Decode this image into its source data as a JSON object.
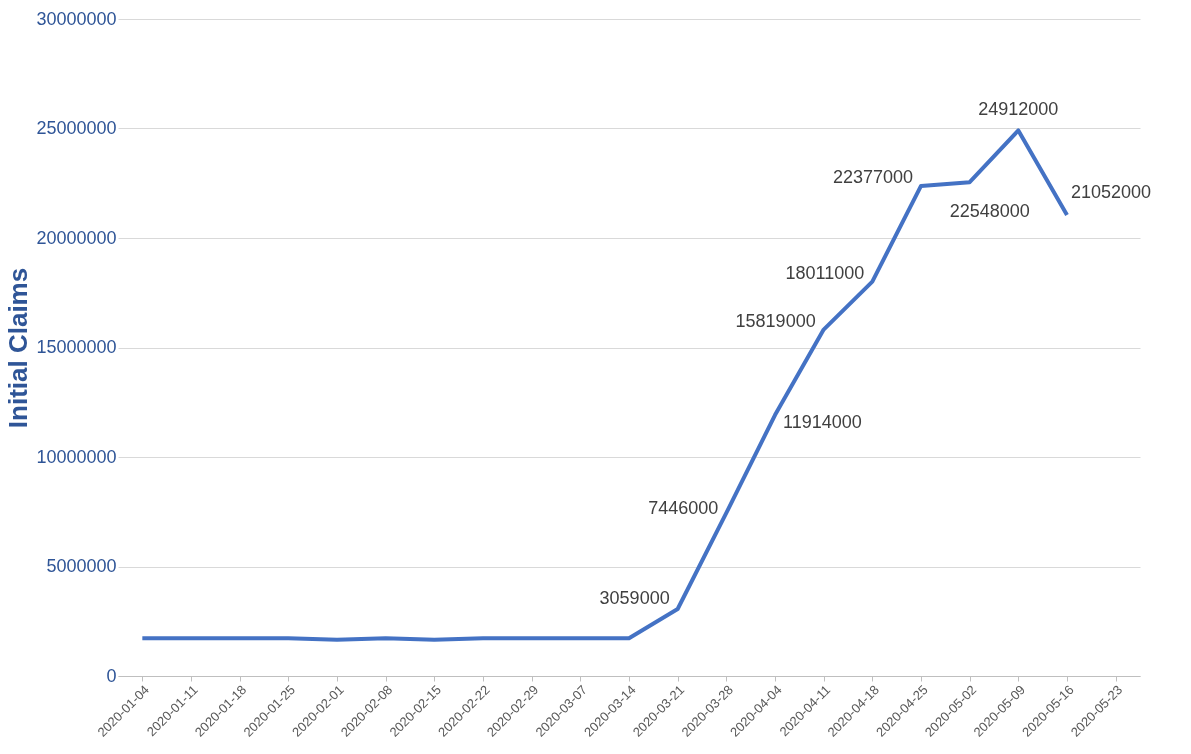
{
  "chart_data": {
    "type": "line",
    "ylabel": "Initial Claims",
    "categories": [
      "2020-01-04",
      "2020-01-11",
      "2020-01-18",
      "2020-01-25",
      "2020-02-01",
      "2020-02-08",
      "2020-02-15",
      "2020-02-22",
      "2020-02-29",
      "2020-03-07",
      "2020-03-14",
      "2020-03-21",
      "2020-03-28",
      "2020-04-04",
      "2020-04-11",
      "2020-04-18",
      "2020-04-25",
      "2020-05-02",
      "2020-05-09",
      "2020-05-16",
      "2020-05-23"
    ],
    "series": [
      {
        "color": "#4472c4",
        "values": [
          1720000,
          1720000,
          1720000,
          1720000,
          1650000,
          1720000,
          1650000,
          1720000,
          1720000,
          1720000,
          1720000,
          3059000,
          7446000,
          11914000,
          15819000,
          18011000,
          22377000,
          22548000,
          24912000,
          21052000,
          null
        ],
        "value_labels": [
          null,
          null,
          null,
          null,
          null,
          null,
          null,
          null,
          null,
          null,
          null,
          "3059000",
          "7446000",
          "11914000",
          "15819000",
          "18011000",
          "22377000",
          "22548000",
          "24912000",
          "21052000",
          null
        ]
      }
    ],
    "ylim": [
      0,
      30000000
    ],
    "yticks": [
      0,
      5000000,
      10000000,
      15000000,
      20000000,
      25000000,
      30000000
    ],
    "grid": "y",
    "marker": "none",
    "line_style": "solid"
  }
}
